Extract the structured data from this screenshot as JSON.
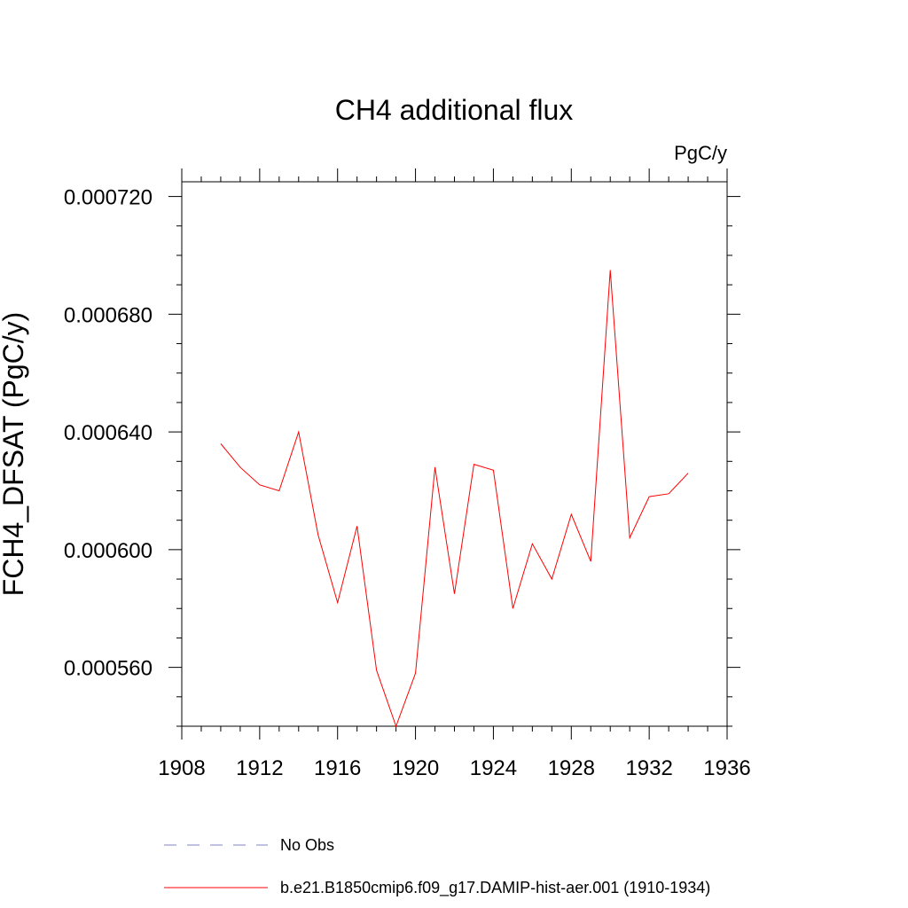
{
  "chart_data": {
    "type": "line",
    "title": "CH4 additional flux",
    "units_label": "PgC/y",
    "ylabel": "FCH4_DFSAT  (PgC/y)",
    "xlabel": "",
    "xlim": [
      1908,
      1936
    ],
    "ylim": [
      0.00054,
      0.000725
    ],
    "x_ticks": [
      1908,
      1912,
      1916,
      1920,
      1924,
      1928,
      1932,
      1936
    ],
    "x_tick_labels": [
      "1908",
      "1912",
      "1916",
      "1920",
      "1924",
      "1928",
      "1932",
      "1936"
    ],
    "y_ticks": [
      0.00056,
      0.0006,
      0.00064,
      0.00068,
      0.00072
    ],
    "y_tick_labels": [
      "0.000560",
      "0.000600",
      "0.000640",
      "0.000680",
      "0.000720"
    ],
    "x_minor_step": 1,
    "y_minor_step": 1e-05,
    "grid": false,
    "legend_position": "bottom",
    "series": [
      {
        "name": "No Obs",
        "color": "#8080c0",
        "dash": "dashed",
        "x": [],
        "values": []
      },
      {
        "name": "b.e21.B1850cmip6.f09_g17.DAMIP-hist-aer.001 (1910-1934)",
        "color": "#ff0000",
        "dash": "solid",
        "x": [
          1910,
          1911,
          1912,
          1913,
          1914,
          1915,
          1916,
          1917,
          1918,
          1919,
          1920,
          1921,
          1922,
          1923,
          1924,
          1925,
          1926,
          1927,
          1928,
          1929,
          1930,
          1931,
          1932,
          1933,
          1934
        ],
        "values": [
          0.000636,
          0.000628,
          0.000622,
          0.00062,
          0.00064,
          0.000605,
          0.000582,
          0.000608,
          0.000559,
          0.00054,
          0.000558,
          0.000628,
          0.000585,
          0.000629,
          0.000627,
          0.00058,
          0.000602,
          0.00059,
          0.000612,
          0.000596,
          0.000695,
          0.000604,
          0.000618,
          0.000619,
          0.000626
        ]
      }
    ]
  }
}
